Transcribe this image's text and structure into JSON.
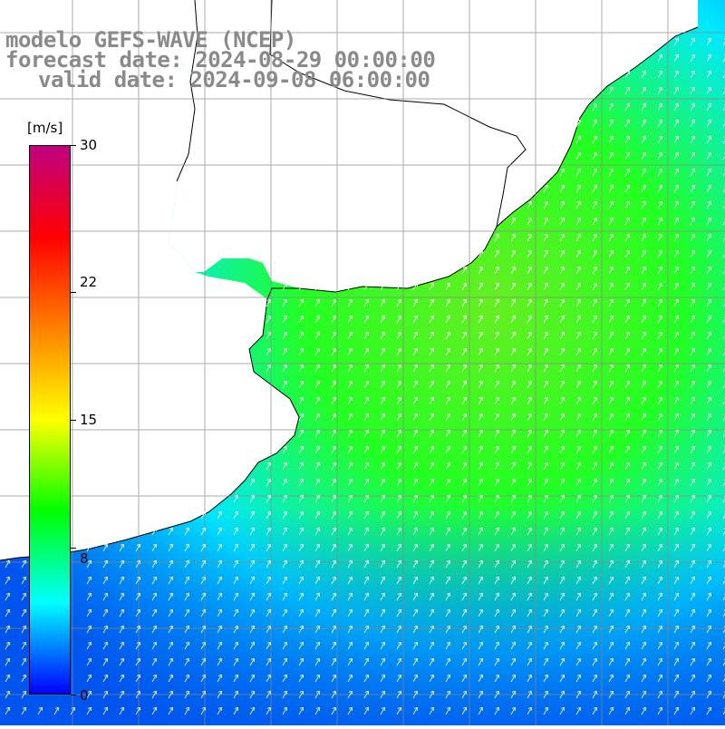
{
  "title": {
    "line1": "modelo GEFS-WAVE (NCEP)",
    "line2": "forecast date: 2024-08-29 00:00:00",
    "line3": "valid date: 2024-09-08 06:00:00"
  },
  "colorbar": {
    "unit": "[m/s]",
    "ticks": [
      "30",
      "22",
      "15",
      "8",
      "0"
    ],
    "tick_values": [
      30,
      22,
      15,
      8,
      0
    ],
    "range": [
      0,
      30
    ],
    "colors": [
      "#0000ff",
      "#00ffff",
      "#00ff00",
      "#ffff00",
      "#ff8000",
      "#ff0000",
      "#c00080"
    ]
  },
  "map": {
    "variable": "wind speed and direction",
    "ocean_field_colors": {
      "low": "#0055ee",
      "mid": "#00e8ff",
      "high": "#22ff22",
      "peak": "#66ee22"
    },
    "land_color": "#ffffff",
    "coastline_color": "#000000",
    "grid_color": "#888888",
    "arrow_color": "#ffffff",
    "arrow_direction": "toward north-east"
  }
}
